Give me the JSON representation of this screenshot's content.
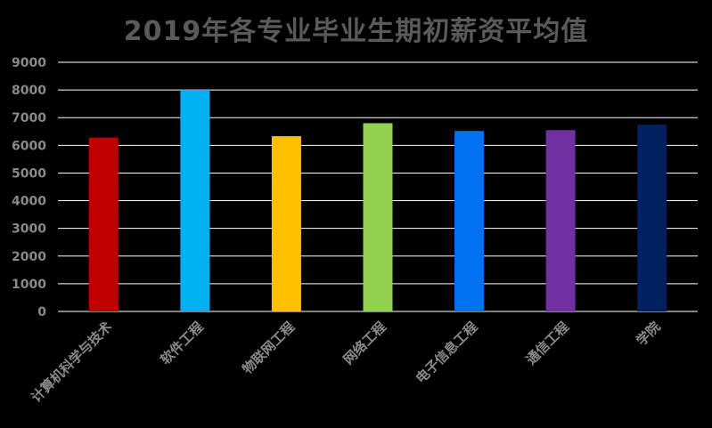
{
  "chart_data": {
    "type": "bar",
    "title": "2019年各专业毕业生期初薪资平均值",
    "categories": [
      "计算机科学与技术",
      "软件工程",
      "物联网工程",
      "网络工程",
      "电子信息工程",
      "通信工程",
      "学院"
    ],
    "values": [
      6280,
      8000,
      6330,
      6800,
      6520,
      6550,
      6750
    ],
    "colors": [
      "#c00000",
      "#00b0f0",
      "#ffc000",
      "#92d050",
      "#0070f0",
      "#7030a0",
      "#002060"
    ],
    "ylim": [
      0,
      9000
    ],
    "yticks": [
      0,
      1000,
      2000,
      3000,
      4000,
      5000,
      6000,
      7000,
      8000,
      9000
    ],
    "grid": true,
    "legend": "none"
  }
}
